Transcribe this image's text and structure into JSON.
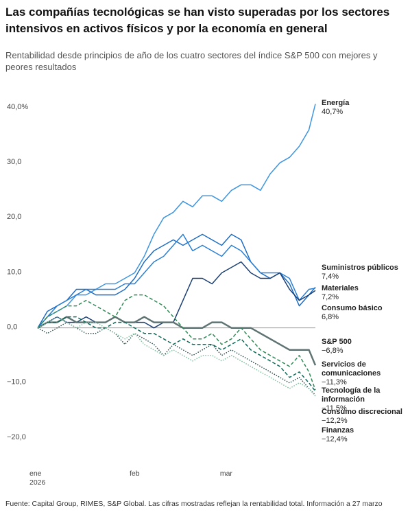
{
  "chart_data": {
    "type": "line",
    "title": "Las compañías tecnológicas se han visto superadas por los sectores intensivos en activos físicos y por la economía en general",
    "subtitle": "Rentabilidad desde principios de año de los cuatro sectores del índice S&P 500 con mejores y peores resultados",
    "source": "Fuente: Capital Group, RIMES, S&P Global. Las cifras mostradas reflejan la rentabilidad total. Información a 27 marzo",
    "x": [
      0,
      3,
      6,
      9,
      12,
      15,
      18,
      21,
      24,
      27,
      30,
      33,
      36,
      39,
      42,
      45,
      48,
      51,
      54,
      57,
      60,
      63,
      66,
      69,
      72,
      75,
      78,
      81,
      84,
      86
    ],
    "xlim": [
      0,
      86
    ],
    "xticks": [
      {
        "value": 0,
        "label": "ene 2026"
      },
      {
        "value": 31,
        "label": "feb"
      },
      {
        "value": 59,
        "label": "mar"
      }
    ],
    "ylim": [
      -20,
      40
    ],
    "yticks": [
      {
        "value": 40,
        "label": "40,0%"
      },
      {
        "value": 30,
        "label": "30,0"
      },
      {
        "value": 20,
        "label": "20,0"
      },
      {
        "value": 10,
        "label": "10,0"
      },
      {
        "value": 0,
        "label": "0,0"
      },
      {
        "value": -10,
        "label": "−10,0"
      },
      {
        "value": -20,
        "label": "−20,0"
      }
    ],
    "grid": false,
    "series": [
      {
        "name": "Energía",
        "color": "#3d95e0",
        "style": "solid",
        "end_label": "40,7%",
        "values": [
          0,
          2,
          3,
          4,
          6,
          6,
          7,
          8,
          8,
          9,
          10,
          13,
          17,
          20,
          21,
          23,
          22,
          24,
          24,
          23,
          25,
          26,
          26,
          25,
          28,
          30,
          31,
          33,
          36,
          40.7
        ]
      },
      {
        "name": "Suministros públicos",
        "color": "#1d6cc2",
        "style": "solid",
        "end_label": "7,4%",
        "values": [
          0,
          3,
          4,
          5,
          7,
          7,
          6,
          6,
          6,
          7,
          9,
          12,
          14,
          15,
          16,
          15,
          16,
          17,
          16,
          15,
          17,
          16,
          12,
          10,
          9,
          10,
          8,
          4,
          6,
          7.4
        ]
      },
      {
        "name": "Materiales",
        "color": "#2a7fd4",
        "style": "solid",
        "end_label": "7,2%",
        "values": [
          0,
          2,
          4,
          5,
          6,
          7,
          7,
          7,
          7,
          8,
          8,
          10,
          12,
          13,
          15,
          17,
          14,
          15,
          14,
          13,
          15,
          14,
          12,
          10,
          10,
          10,
          9,
          5,
          7,
          7.2
        ]
      },
      {
        "name": "Consumo básico",
        "color": "#1b3f73",
        "style": "solid",
        "end_label": "6,8%",
        "values": [
          0,
          1,
          2,
          1,
          1,
          2,
          1,
          1,
          2,
          1,
          1,
          1,
          0,
          1,
          1,
          5,
          9,
          9,
          8,
          10,
          11,
          12,
          10,
          9,
          9,
          10,
          7,
          5,
          6,
          6.8
        ]
      },
      {
        "name": "S&P 500",
        "color": "#5f7373",
        "style": "solid",
        "end_label": "−6,8%",
        "values": [
          0,
          1,
          1,
          2,
          1,
          1,
          1,
          1,
          2,
          1,
          1,
          2,
          1,
          1,
          1,
          0,
          0,
          0,
          1,
          1,
          0,
          0,
          0,
          -1,
          -2,
          -3,
          -4,
          -4,
          -4,
          -6.8
        ]
      },
      {
        "name": "Servicios de comunicaciones",
        "color": "#2e8b57",
        "style": "dashed",
        "end_label": "−11,3%",
        "values": [
          0,
          2,
          3,
          4,
          4,
          5,
          4,
          3,
          2,
          5,
          6,
          6,
          5,
          4,
          2,
          0,
          -2,
          -2,
          -1,
          -3,
          -2,
          0,
          -2,
          -4,
          -5,
          -6,
          -7,
          -5,
          -8,
          -11.3
        ]
      },
      {
        "name": "Tecnología de la información",
        "color": "#0b6b5a",
        "style": "dashed",
        "end_label": "−11,5%",
        "values": [
          0,
          1,
          1,
          2,
          2,
          1,
          0,
          0,
          1,
          1,
          0,
          -1,
          -1,
          -2,
          -3,
          -2,
          -3,
          -3,
          -3,
          -4,
          -3,
          -2,
          -4,
          -5,
          -6,
          -7,
          -9,
          -8,
          -10,
          -11.5
        ]
      },
      {
        "name": "Consumo discrecional",
        "color": "#2f4f4f",
        "style": "dotted",
        "end_label": "−12,2%",
        "values": [
          0,
          -1,
          0,
          1,
          0,
          -1,
          -1,
          0,
          -1,
          -3,
          -1,
          -2,
          -3,
          -5,
          -3,
          -4,
          -5,
          -4,
          -3,
          -5,
          -4,
          -5,
          -6,
          -7,
          -8,
          -9,
          -10,
          -9,
          -11,
          -12.2
        ]
      },
      {
        "name": "Finanzas",
        "color": "#7fbf9f",
        "style": "dotted",
        "end_label": "−12,4%",
        "values": [
          0,
          1,
          2,
          1,
          0,
          1,
          1,
          0,
          -1,
          -2,
          -1,
          -3,
          -4,
          -5,
          -4,
          -5,
          -6,
          -5,
          -5,
          -6,
          -5,
          -6,
          -7,
          -8,
          -9,
          -10,
          -11,
          -10,
          -11,
          -12.4
        ]
      }
    ]
  }
}
